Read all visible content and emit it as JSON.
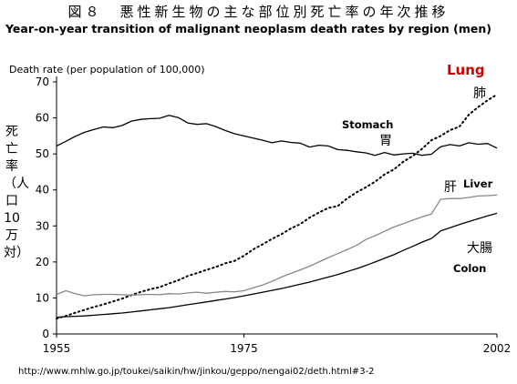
{
  "title_jp": "図８　悪性新生物の主な部位別死亡率の年次推移",
  "title_en": "Year-on-year transition of malignant neoplasm death rates by region (men)",
  "source": "http://www.mhlw.go.jp/toukei/saikin/hw/jinkou/geppo/nengai02/deth.html#3-2",
  "chart_data": {
    "type": "line",
    "ylabel": "Death rate (per population of 100,000)",
    "ylabel_jp": "死亡率（人口10万対）",
    "xlim": [
      1955,
      2002
    ],
    "ylim": [
      0,
      70
    ],
    "x_ticks": [
      "1955",
      "1975",
      "2002"
    ],
    "y_ticks": [
      "0",
      "10",
      "20",
      "30",
      "40",
      "50",
      "60",
      "70"
    ],
    "x": [
      1955,
      1956,
      1957,
      1958,
      1959,
      1960,
      1961,
      1962,
      1963,
      1964,
      1965,
      1966,
      1967,
      1968,
      1969,
      1970,
      1971,
      1972,
      1973,
      1974,
      1975,
      1976,
      1977,
      1978,
      1979,
      1980,
      1981,
      1982,
      1983,
      1984,
      1985,
      1986,
      1987,
      1988,
      1989,
      1990,
      1991,
      1992,
      1993,
      1994,
      1995,
      1996,
      1997,
      1998,
      1999,
      2000,
      2001,
      2002
    ],
    "series": [
      {
        "key": "stomach",
        "name": "Stomach",
        "name_jp": "胃",
        "color": "#000000",
        "dash": "solid",
        "values": [
          52.2,
          53.5,
          54.9,
          56.0,
          56.8,
          57.5,
          57.3,
          57.9,
          59.1,
          59.6,
          59.8,
          59.9,
          60.7,
          60.1,
          58.6,
          58.2,
          58.4,
          57.6,
          56.5,
          55.6,
          55.0,
          54.4,
          53.8,
          53.1,
          53.6,
          53.2,
          53.0,
          51.9,
          52.4,
          52.2,
          51.2,
          51.0,
          50.6,
          50.3,
          49.6,
          50.4,
          49.7,
          50.0,
          50.2,
          49.6,
          49.9,
          52.0,
          52.6,
          52.2,
          53.1,
          52.7,
          52.9,
          51.6
        ]
      },
      {
        "key": "lung",
        "name": "Lung",
        "name_jp": "肺",
        "color": "#000000",
        "dash": "dotted",
        "values": [
          4.3,
          5.0,
          5.9,
          6.7,
          7.5,
          8.2,
          9.0,
          9.8,
          10.8,
          11.7,
          12.4,
          13.0,
          14.0,
          14.9,
          16.1,
          16.9,
          17.8,
          18.6,
          19.6,
          20.3,
          21.7,
          23.5,
          24.9,
          26.4,
          27.7,
          29.3,
          30.5,
          32.3,
          33.7,
          35.0,
          35.5,
          37.6,
          39.3,
          40.7,
          42.3,
          44.3,
          45.7,
          47.8,
          49.4,
          51.4,
          53.8,
          55.0,
          56.6,
          57.6,
          60.9,
          63.0,
          64.9,
          66.5
        ]
      },
      {
        "key": "liver",
        "name": "Liver",
        "name_jp": "肝",
        "color": "#888888",
        "dash": "solid",
        "values": [
          11.0,
          12.0,
          11.2,
          10.6,
          10.9,
          11.0,
          11.0,
          10.9,
          10.8,
          10.9,
          11.0,
          10.9,
          11.2,
          11.1,
          11.4,
          11.6,
          11.3,
          11.6,
          11.8,
          11.7,
          12.0,
          12.8,
          13.6,
          14.6,
          15.8,
          16.8,
          17.8,
          18.8,
          20.0,
          21.2,
          22.3,
          23.4,
          24.6,
          26.2,
          27.3,
          28.5,
          29.7,
          30.6,
          31.6,
          32.5,
          33.3,
          37.4,
          37.6,
          37.6,
          37.9,
          38.3,
          38.4,
          38.6
        ]
      },
      {
        "key": "colon",
        "name": "Colon",
        "name_jp": "大腸",
        "color": "#000000",
        "dash": "solid",
        "values": [
          4.6,
          4.8,
          4.9,
          5.0,
          5.2,
          5.4,
          5.6,
          5.8,
          6.1,
          6.4,
          6.7,
          7.0,
          7.3,
          7.7,
          8.1,
          8.5,
          8.9,
          9.3,
          9.7,
          10.1,
          10.6,
          11.1,
          11.6,
          12.1,
          12.6,
          13.2,
          13.8,
          14.4,
          15.1,
          15.8,
          16.5,
          17.3,
          18.1,
          19.0,
          20.0,
          21.0,
          22.0,
          23.2,
          24.3,
          25.5,
          26.5,
          28.6,
          29.5,
          30.4,
          31.2,
          32.0,
          32.8,
          33.5
        ]
      }
    ]
  }
}
